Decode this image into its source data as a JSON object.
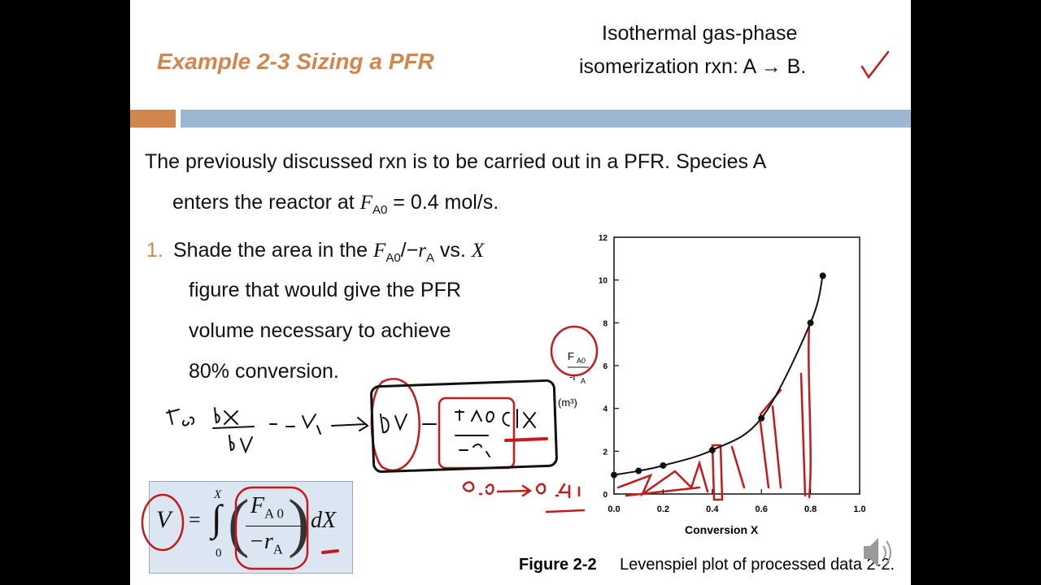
{
  "header": {
    "title": "Example 2-3 Sizing a PFR",
    "note": [
      "Isothermal gas-phase",
      "isomerization rxn: A → B."
    ]
  },
  "intro": {
    "line1": "The previously discussed rxn is to be carried out in a PFR. Species A",
    "line2": [
      "enters the reactor at ",
      "F",
      "A0",
      " = 0.4 mol/s."
    ]
  },
  "question": {
    "number": "1.",
    "line1": [
      "Shade the area in the ",
      "F",
      "A0",
      "/−",
      "r",
      "A",
      " vs. ",
      "X"
    ],
    "lines": [
      "figure that would give the PFR",
      "volume necessary to achieve",
      "80% conversion."
    ]
  },
  "formula": {
    "lhs": "V",
    "eq": "=",
    "integral": "∫",
    "upper": "X",
    "lower": "0",
    "num": [
      "F",
      "A 0"
    ],
    "den": [
      "−r",
      "A"
    ],
    "tail": "dX"
  },
  "chart_data": {
    "type": "line",
    "x_label": "Conversion X",
    "y_label": [
      "F",
      "A0",
      "-r",
      "A",
      "(m³)"
    ],
    "x": [
      0,
      0.1,
      0.2,
      0.4,
      0.6,
      0.8,
      0.85
    ],
    "series": [
      {
        "color": "#111111",
        "values": [
          0.89,
          1.08,
          1.33,
          2.05,
          3.54,
          8.0,
          10.2
        ]
      }
    ],
    "xlim": [
      0,
      1
    ],
    "ylim": [
      0,
      12
    ],
    "xticks": [
      {
        "value": 0,
        "label": "0.0"
      },
      0.2,
      0.4,
      0.6,
      0.8,
      {
        "value": 1,
        "label": "1.0"
      }
    ],
    "yticks": [
      0,
      2,
      4,
      6,
      8,
      10,
      12
    ],
    "caption": [
      "Figure 2-2",
      "Levenspiel plot of processed data 2-2."
    ]
  }
}
